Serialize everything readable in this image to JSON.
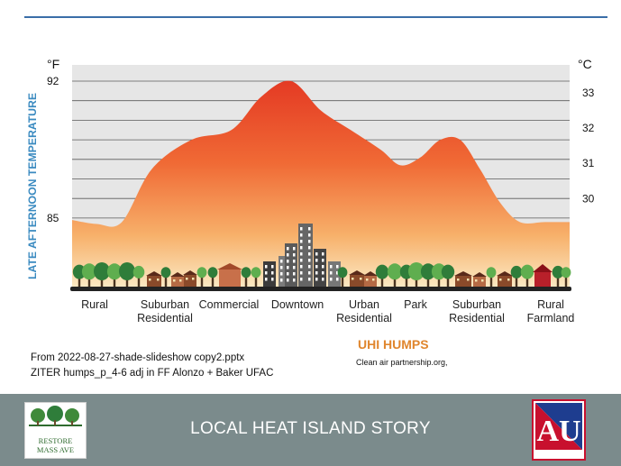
{
  "chart_data": {
    "type": "area",
    "title": "",
    "ylabel": "LATE AFTERNOON TEMPERATURE",
    "y_unit_left": "°F",
    "y_unit_right": "°C",
    "y_ticks_left": [
      92,
      85
    ],
    "y_ticks_right": [
      33,
      32,
      31,
      30
    ],
    "ylim_f": [
      83.5,
      92.6
    ],
    "grid": true,
    "categories": [
      "Rural",
      "Suburban Residential",
      "Commercial",
      "Downtown",
      "Urban Residential",
      "Park",
      "Suburban Residential",
      "Rural Farmland"
    ],
    "values_f": [
      84.8,
      84.9,
      89.0,
      92.0,
      89.4,
      87.7,
      89.1,
      84.8
    ],
    "profile": {
      "x": [
        0,
        0.05,
        0.1,
        0.16,
        0.24,
        0.32,
        0.38,
        0.44,
        0.5,
        0.56,
        0.62,
        0.66,
        0.7,
        0.74,
        0.78,
        0.82,
        0.86,
        0.9,
        0.95,
        1.0
      ],
      "y": [
        84.9,
        84.7,
        84.8,
        87.5,
        89.0,
        89.5,
        91.2,
        92.0,
        90.5,
        89.5,
        88.5,
        87.7,
        88.1,
        89.0,
        89.0,
        87.5,
        85.8,
        84.8,
        84.8,
        84.8
      ]
    }
  },
  "city_colors": {
    "trees": "#2f7d3a",
    "trees_light": "#5fae4f",
    "houses": "#8a4a2a",
    "commercial": "#b56a44",
    "towers": "#5a5a5a",
    "ground": "#222222"
  },
  "source_lines": [
    "From 2022-08-27-shade-slideshow copy2.pptx",
    "ZITER humps_p_4-6 adj in FF Alonzo + Baker UFAC"
  ],
  "uhi_title": "UHI HUMPS",
  "uhi_credit": "Clean air partnership.org,",
  "footer": {
    "title": "LOCAL HEAT ISLAND STORY",
    "logo_left_lines": [
      "RESTORE",
      "MASS AVE"
    ],
    "logo_right": "AU"
  }
}
